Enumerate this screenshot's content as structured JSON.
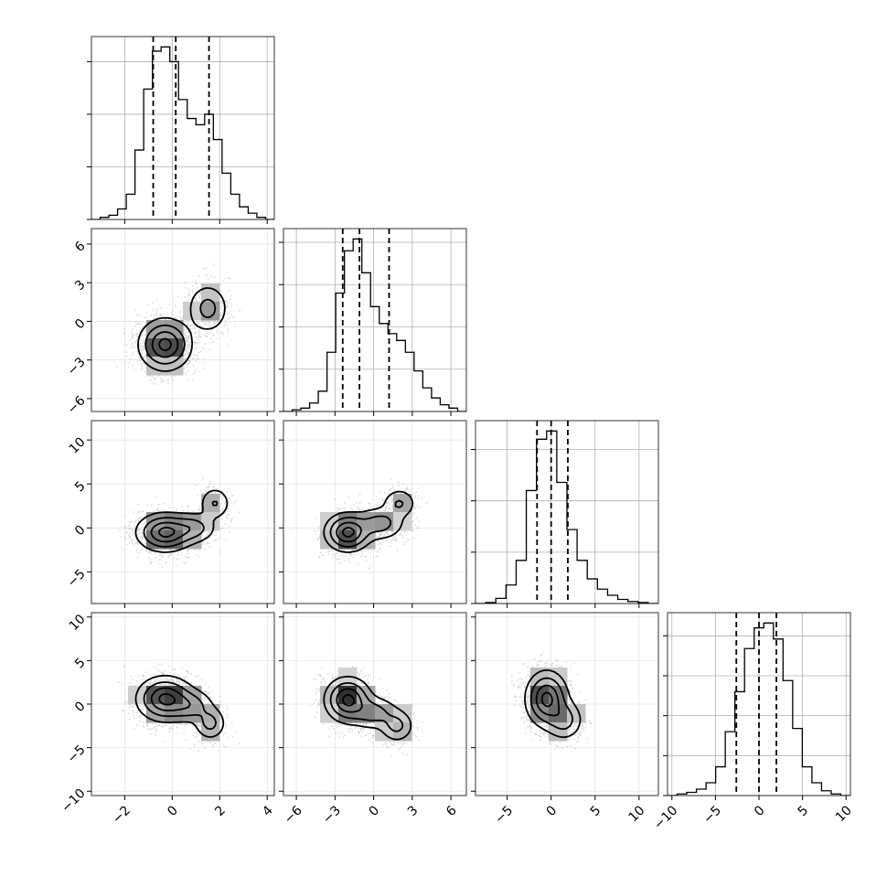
{
  "chart_data": {
    "type": "corner",
    "grid": true,
    "variables": [
      {
        "ticks": [
          -2,
          0,
          2,
          4
        ],
        "tick_labels": [
          "−2",
          "0",
          "2",
          "4"
        ],
        "range": [
          -3.4,
          4.3
        ],
        "hist": [
          0,
          1,
          2,
          5,
          12,
          33,
          62,
          80,
          82,
          75,
          57,
          48,
          45,
          50,
          38,
          22,
          12,
          6,
          3,
          1,
          0
        ],
        "quantiles": [
          -0.8,
          0.15,
          1.55
        ]
      },
      {
        "ticks": [
          -6,
          -3,
          0,
          3,
          6
        ],
        "tick_labels": [
          "−6",
          "−3",
          "0",
          "3",
          "6"
        ],
        "range": [
          -7.0,
          7.2
        ],
        "hist": [
          0,
          1,
          2,
          5,
          12,
          35,
          70,
          95,
          102,
          82,
          62,
          52,
          46,
          42,
          35,
          24,
          14,
          8,
          4,
          2,
          0
        ],
        "quantiles": [
          -2.4,
          -1.1,
          1.2
        ]
      },
      {
        "ticks": [
          -5,
          0,
          5,
          10
        ],
        "tick_labels": [
          "−5",
          "0",
          "5",
          "10"
        ],
        "range": [
          -8.6,
          12.2
        ],
        "hist": [
          0,
          1,
          5,
          18,
          42,
          110,
          160,
          168,
          118,
          72,
          42,
          24,
          14,
          8,
          4,
          2,
          1,
          0
        ],
        "quantiles": [
          -1.6,
          0.0,
          1.9
        ]
      },
      {
        "ticks": [
          -10,
          -5,
          0,
          5,
          10
        ],
        "tick_labels": [
          "−10",
          "−5",
          "0",
          "5",
          "10"
        ],
        "range": [
          -10.5,
          10.5
        ],
        "hist": [
          0,
          1,
          2,
          4,
          8,
          18,
          40,
          65,
          92,
          105,
          108,
          98,
          72,
          42,
          18,
          8,
          3,
          1,
          0
        ],
        "quantiles": [
          -2.6,
          0.0,
          2.0
        ]
      }
    ],
    "pairs": [
      {
        "x": 0,
        "y": 1,
        "components": [
          {
            "mx": -0.3,
            "my": -1.8,
            "sx": 0.55,
            "sy": 1.0,
            "w": 1.0
          },
          {
            "mx": 1.5,
            "my": 1.0,
            "sx": 0.45,
            "sy": 1.0,
            "w": 0.42
          }
        ]
      },
      {
        "x": 0,
        "y": 2,
        "components": [
          {
            "mx": -0.3,
            "my": -0.5,
            "sx": 0.6,
            "sy": 1.1,
            "w": 1.0
          },
          {
            "mx": 0.9,
            "my": 0.0,
            "sx": 0.5,
            "sy": 0.9,
            "w": 0.45
          },
          {
            "mx": 1.8,
            "my": 2.8,
            "sx": 0.35,
            "sy": 1.0,
            "w": 0.35
          }
        ]
      },
      {
        "x": 1,
        "y": 2,
        "components": [
          {
            "mx": -2.0,
            "my": -0.5,
            "sx": 0.9,
            "sy": 1.1,
            "w": 1.0
          },
          {
            "mx": 0.5,
            "my": 0.5,
            "sx": 1.0,
            "sy": 1.0,
            "w": 0.45
          },
          {
            "mx": 2.0,
            "my": 2.8,
            "sx": 0.7,
            "sy": 0.9,
            "w": 0.35
          }
        ]
      },
      {
        "x": 0,
        "y": 3,
        "components": [
          {
            "mx": -0.3,
            "my": 0.6,
            "sx": 0.6,
            "sy": 1.3,
            "w": 1.0
          },
          {
            "mx": 0.8,
            "my": -0.2,
            "sx": 0.5,
            "sy": 1.0,
            "w": 0.45
          },
          {
            "mx": 1.6,
            "my": -2.2,
            "sx": 0.35,
            "sy": 1.0,
            "w": 0.42
          }
        ]
      },
      {
        "x": 1,
        "y": 3,
        "components": [
          {
            "mx": -2.0,
            "my": 0.5,
            "sx": 0.9,
            "sy": 1.3,
            "w": 1.0
          },
          {
            "mx": 0.0,
            "my": -1.0,
            "sx": 1.0,
            "sy": 1.0,
            "w": 0.45
          },
          {
            "mx": 1.8,
            "my": -2.5,
            "sx": 0.7,
            "sy": 1.0,
            "w": 0.4
          }
        ]
      },
      {
        "x": 2,
        "y": 3,
        "components": [
          {
            "mx": -0.5,
            "my": 0.6,
            "sx": 1.2,
            "sy": 1.6,
            "w": 1.0
          },
          {
            "mx": 1.5,
            "my": -1.8,
            "sx": 1.1,
            "sy": 1.2,
            "w": 0.45
          }
        ]
      }
    ],
    "contour_levels": [
      0.12,
      0.33,
      0.62,
      0.9
    ]
  }
}
